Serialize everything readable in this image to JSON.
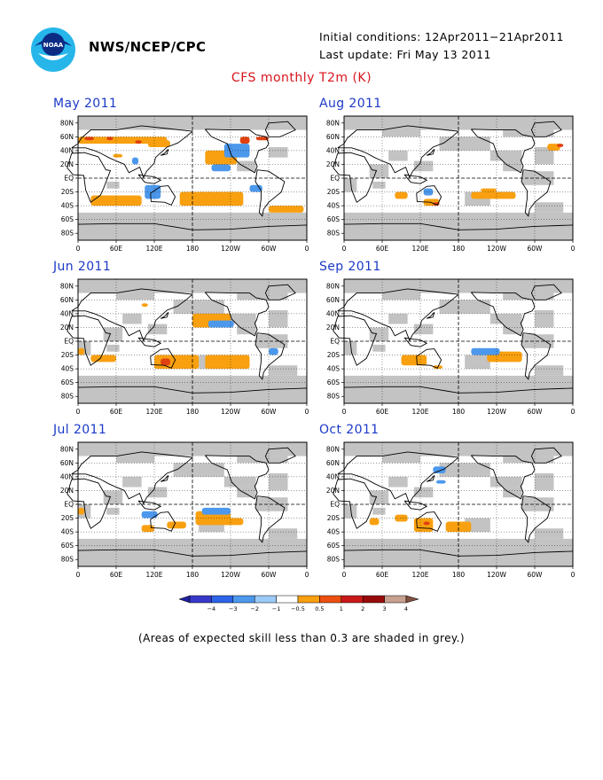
{
  "header": {
    "agency": "NWS/NCEP/CPC",
    "initial_conditions": "Initial conditions: 12Apr2011−21Apr2011",
    "last_update": "Last update: Fri May 13 2011",
    "title": "CFS monthly T2m (K)"
  },
  "footnote": "(Areas of expected skill less than 0.3 are shaded in grey.)",
  "colors": {
    "grey_low_skill": "#c3c3c3",
    "title_red": "#d8141c",
    "panel_title_blue": "#1c39c8"
  },
  "chart_data": {
    "type": "heatmap",
    "title": "CFS monthly T2m (K)",
    "x_ticks": [
      "0",
      "60E",
      "120E",
      "180",
      "120W",
      "60W",
      "0"
    ],
    "y_ticks": [
      "80N",
      "60N",
      "40N",
      "20N",
      "EQ",
      "20S",
      "40S",
      "60S",
      "80S"
    ],
    "panels": [
      {
        "title": "May 2011",
        "skill_grey": "moderate",
        "warm": [
          [
            0,
            50,
            140,
            60
          ],
          [
            60,
            55,
            80,
            60
          ],
          [
            110,
            45,
            145,
            55
          ],
          [
            55,
            30,
            70,
            35
          ],
          [
            200,
            20,
            250,
            40
          ],
          [
            160,
            -20,
            260,
            -40
          ],
          [
            20,
            -25,
            100,
            -40
          ],
          [
            300,
            -40,
            355,
            -50
          ]
        ],
        "strong": [
          [
            10,
            55,
            25,
            60
          ],
          [
            45,
            55,
            55,
            60
          ],
          [
            90,
            50,
            100,
            55
          ],
          [
            255,
            50,
            270,
            60
          ],
          [
            280,
            55,
            300,
            60
          ]
        ],
        "cool": [
          [
            105,
            -10,
            130,
            -30
          ],
          [
            230,
            30,
            270,
            50
          ],
          [
            210,
            10,
            240,
            20
          ],
          [
            85,
            20,
            95,
            30
          ],
          [
            270,
            -10,
            290,
            -20
          ]
        ]
      },
      {
        "title": "Aug 2011",
        "skill_grey": "high",
        "warm": [
          [
            80,
            -20,
            100,
            -30
          ],
          [
            125,
            -30,
            150,
            -40
          ],
          [
            200,
            -20,
            270,
            -30
          ],
          [
            215,
            -15,
            240,
            -20
          ],
          [
            320,
            40,
            340,
            50
          ]
        ],
        "strong": [
          [
            140,
            -35,
            150,
            -40
          ],
          [
            335,
            45,
            345,
            50
          ]
        ],
        "cool": [
          [
            125,
            -15,
            140,
            -25
          ]
        ]
      },
      {
        "title": "Jun 2011",
        "skill_grey": "high",
        "warm": [
          [
            180,
            20,
            240,
            40
          ],
          [
            120,
            -20,
            190,
            -40
          ],
          [
            200,
            -20,
            270,
            -40
          ],
          [
            20,
            -20,
            60,
            -30
          ],
          [
            0,
            -10,
            10,
            -20
          ],
          [
            100,
            50,
            110,
            55
          ]
        ],
        "strong": [
          [
            130,
            -25,
            145,
            -35
          ]
        ],
        "cool": [
          [
            205,
            20,
            245,
            30
          ],
          [
            300,
            -10,
            315,
            -20
          ]
        ]
      },
      {
        "title": "Sep 2011",
        "skill_grey": "high",
        "warm": [
          [
            90,
            -20,
            130,
            -35
          ],
          [
            225,
            -15,
            280,
            -30
          ],
          [
            140,
            -35,
            155,
            -40
          ]
        ],
        "strong": [],
        "cool": [
          [
            200,
            -10,
            245,
            -20
          ]
        ]
      },
      {
        "title": "Jul 2011",
        "skill_grey": "high",
        "warm": [
          [
            185,
            -10,
            240,
            -30
          ],
          [
            140,
            -25,
            170,
            -35
          ],
          [
            0,
            -5,
            10,
            -15
          ],
          [
            100,
            -30,
            120,
            -40
          ],
          [
            230,
            -20,
            260,
            -30
          ]
        ],
        "strong": [],
        "cool": [
          [
            100,
            -10,
            125,
            -20
          ],
          [
            195,
            -5,
            240,
            -15
          ]
        ]
      },
      {
        "title": "Oct 2011",
        "skill_grey": "high",
        "warm": [
          [
            110,
            -20,
            140,
            -40
          ],
          [
            160,
            -25,
            200,
            -40
          ],
          [
            80,
            -15,
            100,
            -25
          ],
          [
            40,
            -20,
            55,
            -30
          ]
        ],
        "strong": [
          [
            125,
            -25,
            135,
            -30
          ]
        ],
        "cool": [
          [
            140,
            45,
            160,
            55
          ],
          [
            145,
            30,
            160,
            35
          ]
        ]
      }
    ],
    "legend": {
      "labels": [
        "−4",
        "−3",
        "−2",
        "−1",
        "−0.5",
        "0.5",
        "1",
        "2",
        "3",
        "4"
      ],
      "colors": [
        "#2020a0",
        "#3838c8",
        "#2c64e8",
        "#4c98ec",
        "#9ccaf8",
        "#ffffff",
        "#f8a010",
        "#ec5010",
        "#c81818",
        "#980a0a",
        "#c8a090",
        "#805040"
      ]
    }
  }
}
